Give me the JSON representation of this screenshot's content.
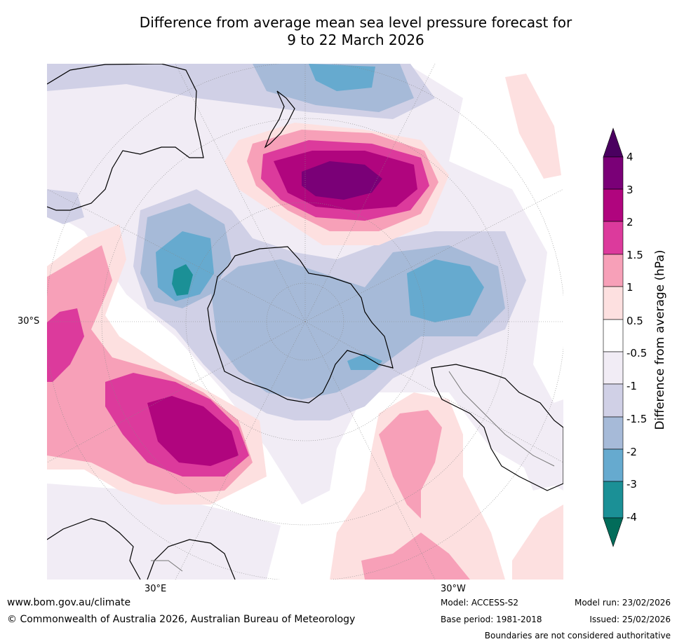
{
  "title": {
    "line1": "Difference from average mean sea level pressure forecast for",
    "line2": "9 to 22 March 2026"
  },
  "map": {
    "lat_label": "30°S",
    "lon_labels": {
      "left": "30°E",
      "right": "30°W"
    }
  },
  "colorbar": {
    "title": "Difference from average (hPa)",
    "ticks": [
      "4",
      "3",
      "2",
      "1.5",
      "1",
      "0.5",
      "-0.5",
      "-1",
      "-1.5",
      "-2",
      "-3",
      "-4"
    ],
    "colors": {
      "gt4": "#4a0060",
      "3to4": "#7a0077",
      "2to3": "#b0057e",
      "1.5to2": "#dc3a9c",
      "1to1.5": "#f7a0b8",
      "0.5to1": "#fde0e0",
      "neutral": "#ffffff",
      "-1to-0.5": "#f1ecf5",
      "-1.5to-1": "#d0d0e6",
      "-2to-1.5": "#a6bad8",
      "-3to-2": "#66aacf",
      "-4to-3": "#1b9096",
      "lt-4": "#026c5a"
    }
  },
  "footer": {
    "website": "www.bom.gov.au/climate",
    "copyright": "© Commonwealth of Australia 2026, Australian Bureau of Meteorology",
    "model": "Model: ACCESS-S2",
    "base_period": "Base period: 1981-2018",
    "model_run": "Model run: 23/02/2026",
    "issued": "Issued: 25/02/2026",
    "disclaimer": "Boundaries are not considered authoritative"
  }
}
